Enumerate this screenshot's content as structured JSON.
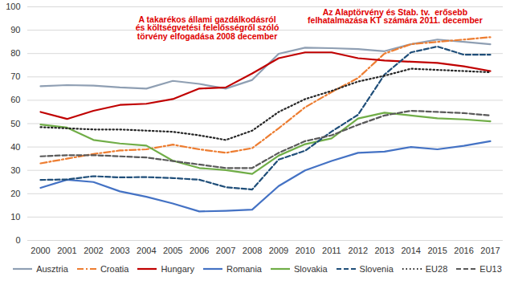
{
  "chart_data": {
    "type": "line",
    "x": [
      2000,
      2001,
      2002,
      2003,
      2004,
      2005,
      2006,
      2007,
      2008,
      2009,
      2010,
      2011,
      2012,
      2013,
      2014,
      2015,
      2016,
      2017
    ],
    "xlim": [
      2000,
      2017
    ],
    "xticks": [
      2000,
      2001,
      2002,
      2003,
      2004,
      2005,
      2006,
      2007,
      2008,
      2009,
      2010,
      2011,
      2012,
      2013,
      2014,
      2015,
      2016,
      2017
    ],
    "ylim": [
      0,
      100
    ],
    "yticks": [
      0,
      10,
      20,
      30,
      40,
      50,
      60,
      70,
      80,
      90,
      100
    ],
    "grid": true,
    "legend": "bottom",
    "series": [
      {
        "name": "Ausztria",
        "color": "#8f9fb3",
        "line_style": "solid",
        "values": [
          66,
          66.5,
          66.3,
          65.5,
          65,
          68.3,
          67,
          65,
          68.7,
          79.9,
          82.5,
          82.3,
          81.9,
          81,
          84,
          86,
          85,
          84
        ]
      },
      {
        "name": "Croatia",
        "color": "#ed7d31",
        "line_style": "dashdot",
        "values": [
          33,
          35,
          37,
          38.5,
          39,
          41,
          39,
          37.5,
          39.5,
          48,
          57,
          63.5,
          69.5,
          80,
          84,
          85,
          86,
          87
        ]
      },
      {
        "name": "Hungary",
        "color": "#c00000",
        "line_style": "solid",
        "values": [
          55,
          52,
          55.5,
          58,
          58.5,
          60.5,
          65,
          65.5,
          71.5,
          78,
          80.5,
          80.5,
          78,
          77,
          76.5,
          76,
          74.5,
          72.5
        ]
      },
      {
        "name": "Romania",
        "color": "#4472c4",
        "line_style": "solid",
        "values": [
          22.5,
          26,
          25,
          21,
          18.7,
          15.8,
          12.4,
          12.7,
          13.2,
          23.3,
          30,
          34,
          37.5,
          38,
          40,
          39,
          40.5,
          42.5
        ]
      },
      {
        "name": "Slovakia",
        "color": "#70ad47",
        "line_style": "solid",
        "values": [
          49.6,
          48.3,
          43,
          41.5,
          40.6,
          34.1,
          31,
          30.1,
          28.5,
          36.3,
          41.2,
          43.7,
          52.2,
          54.7,
          53.5,
          52.3,
          51.8,
          51
        ]
      },
      {
        "name": "Slovenia",
        "color": "#1f4e79",
        "line_style": "dashed",
        "values": [
          25.9,
          26.1,
          27.5,
          27,
          27.1,
          26.7,
          26,
          22.8,
          21.8,
          34.6,
          38.4,
          46.6,
          53.8,
          71,
          80.5,
          83,
          79.5,
          79.5
        ]
      },
      {
        "name": "EU28",
        "color": "#262626",
        "line_style": "dotted",
        "values": [
          48.5,
          48,
          47.5,
          47.5,
          47,
          46.5,
          45,
          43,
          47,
          55,
          60.5,
          64,
          68,
          70.5,
          73.5,
          73,
          72.5,
          72
        ]
      },
      {
        "name": "EU13",
        "color": "#595959",
        "line_style": "dashed",
        "values": [
          36,
          36.5,
          36.5,
          36,
          35.5,
          34,
          32.5,
          31,
          31,
          37.5,
          42.5,
          45,
          49.5,
          53.5,
          55.5,
          55,
          54.5,
          53.5
        ]
      }
    ],
    "annotations": [
      {
        "text": "A takarékos állami gazdálkodásról\nés költségvetési felelősségről szóló\ntörvény elfogadása 2008 december",
        "x": 2006.3,
        "y": 96,
        "color": "#e00000"
      },
      {
        "text": "Az Alaptörvény és Stab. tv.  erősebb\nfelhatalmazása KT számára 2011. december",
        "x": 2013.4,
        "y": 99,
        "color": "#e00000"
      }
    ]
  }
}
